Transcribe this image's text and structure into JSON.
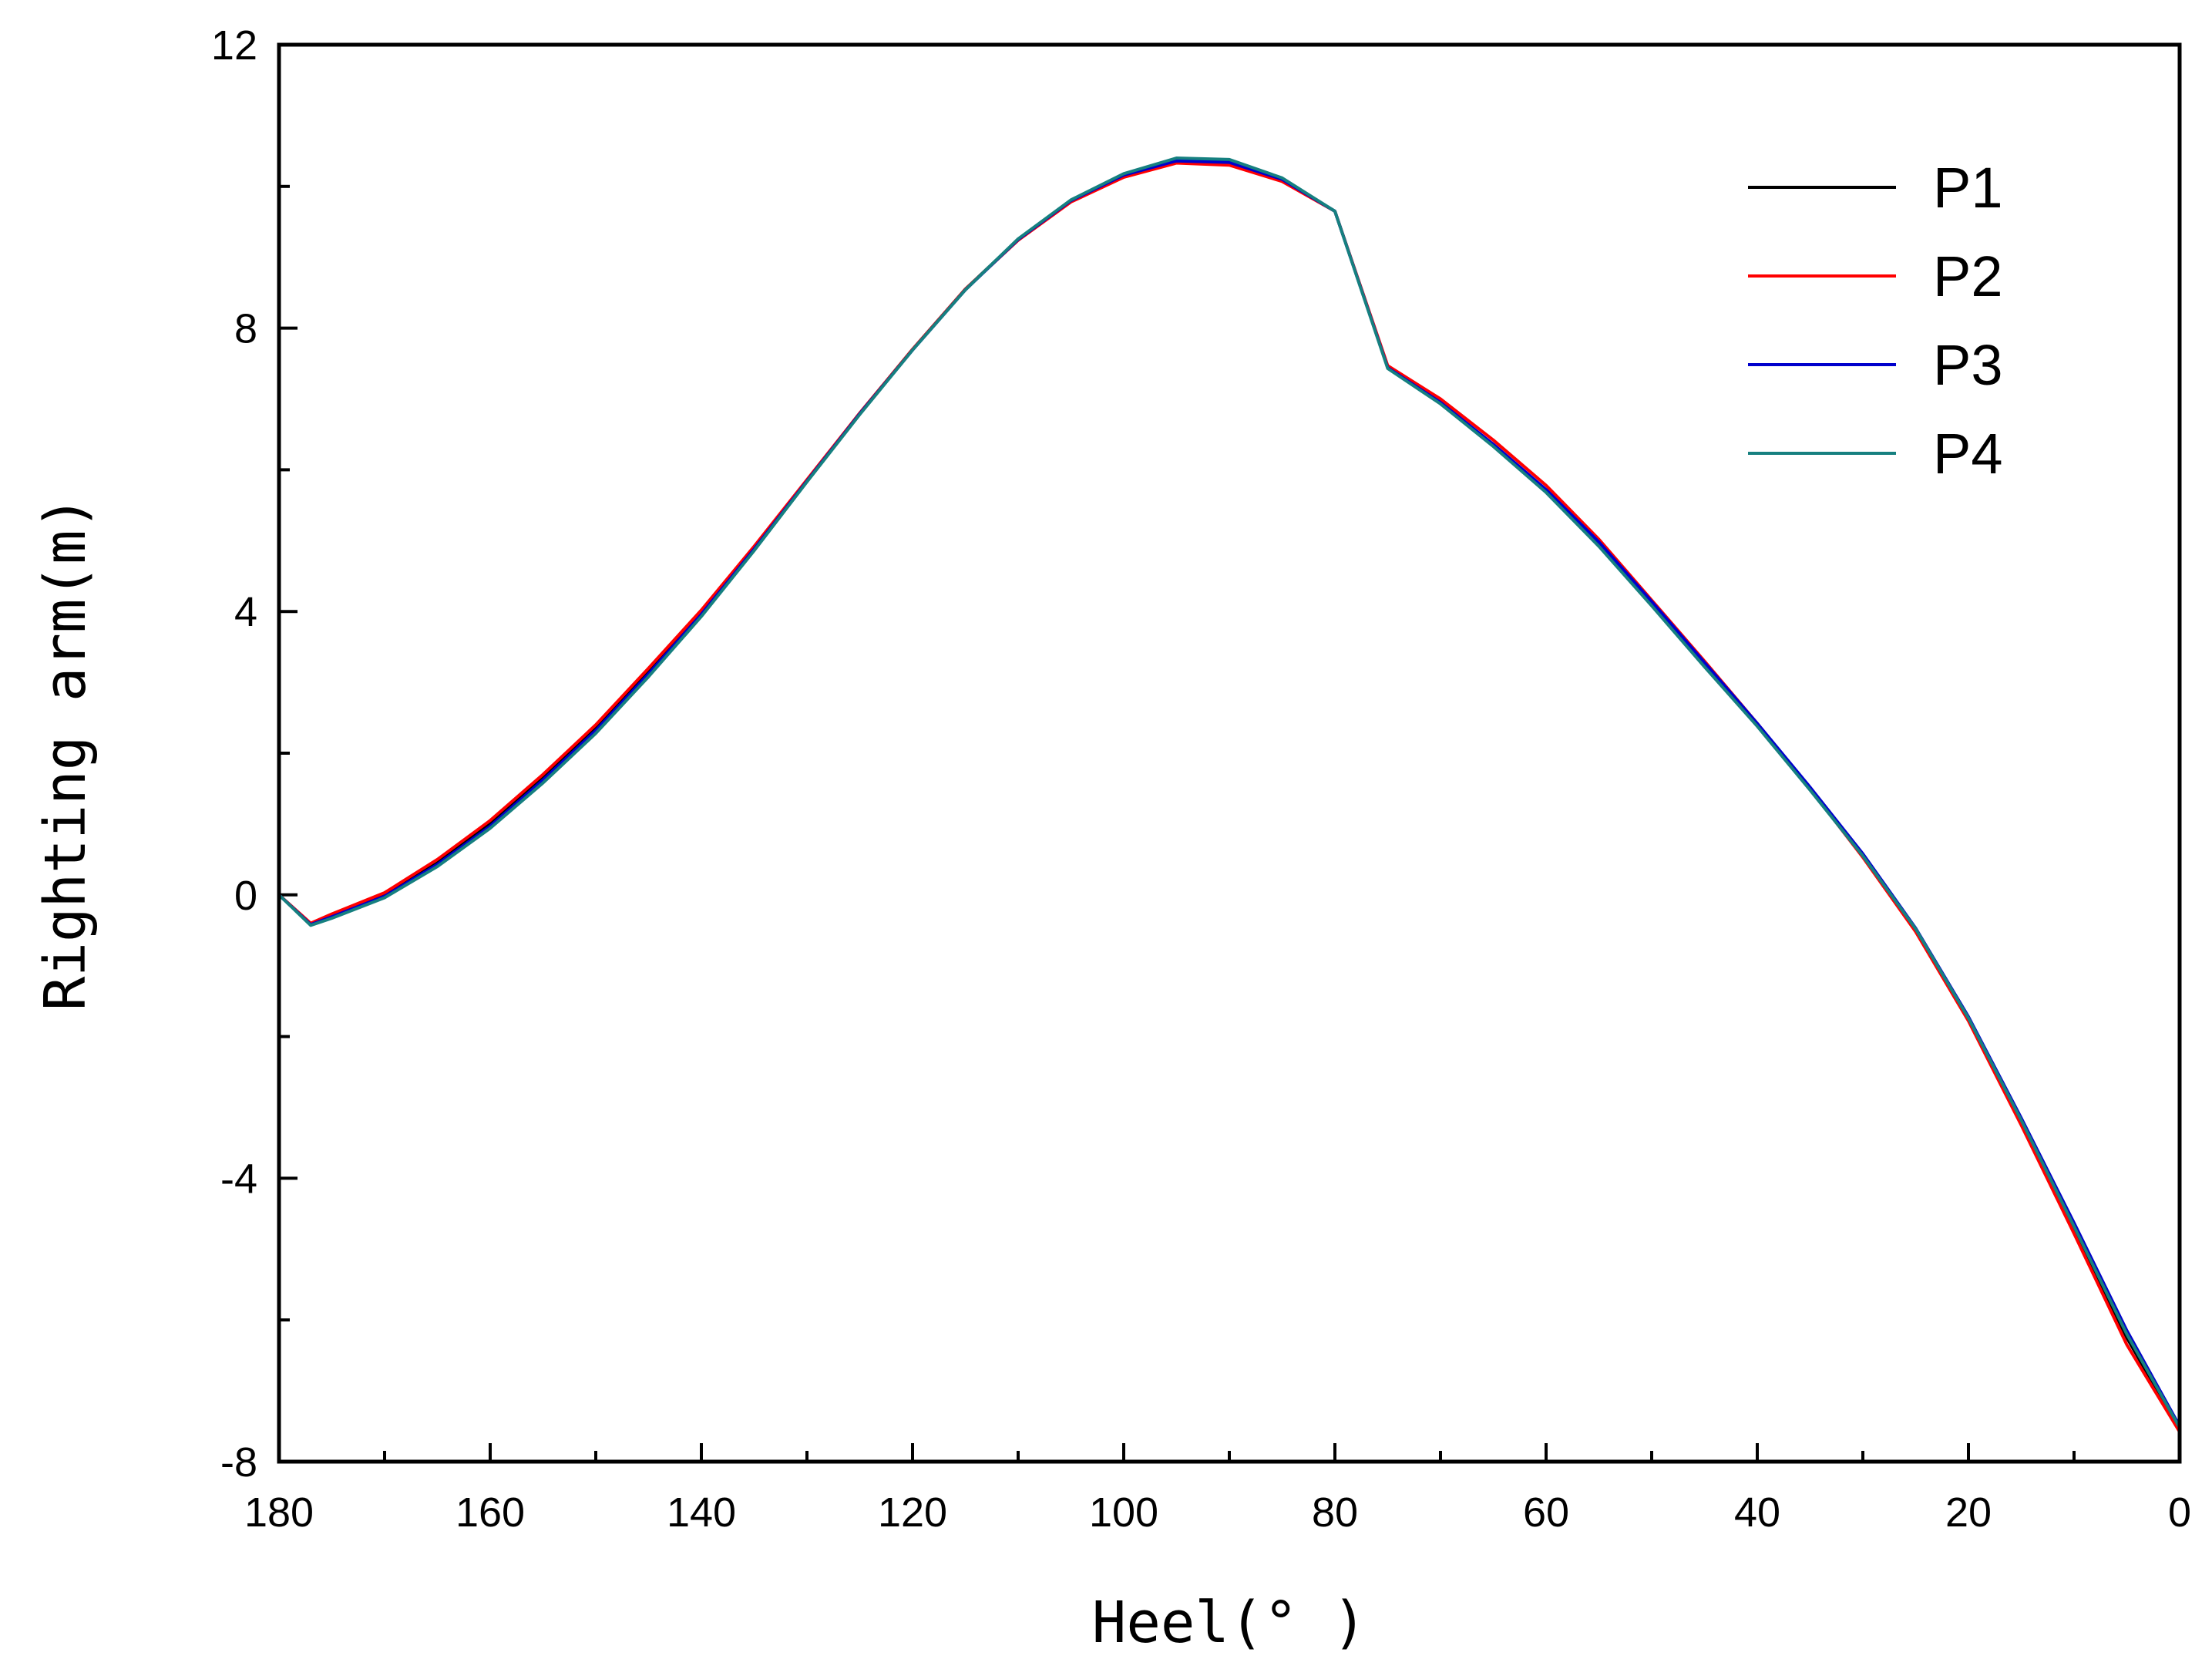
{
  "chart_data": {
    "type": "line",
    "title": "",
    "xlabel": "Heel(° )",
    "ylabel": "Righting arm(m)",
    "xlim": [
      180,
      0
    ],
    "ylim": [
      -8,
      12
    ],
    "x_ticks": [
      "180",
      "160",
      "140",
      "120",
      "100",
      "80",
      "60",
      "40",
      "20",
      "0"
    ],
    "y_ticks": [
      "12",
      "8",
      "4",
      "0",
      "-4",
      "-8"
    ],
    "legend_position": "top-right",
    "series": [
      {
        "name": "P1",
        "color": "#000000",
        "x": [
          180,
          177,
          175,
          170,
          165,
          160,
          155,
          150,
          145,
          140,
          135,
          130,
          125,
          120,
          115,
          110,
          105,
          100,
          95,
          90,
          85,
          80,
          75,
          70,
          65,
          60,
          55,
          50,
          45,
          40,
          35,
          30,
          25,
          20,
          15,
          10,
          5,
          0
        ],
        "y": [
          0,
          -0.42,
          -0.3,
          0,
          0.45,
          1.0,
          1.65,
          2.35,
          3.15,
          3.98,
          4.9,
          5.85,
          6.8,
          7.7,
          8.55,
          9.25,
          9.8,
          10.15,
          10.38,
          10.35,
          10.1,
          9.65,
          7.45,
          6.95,
          6.35,
          5.7,
          4.95,
          4.1,
          3.25,
          2.4,
          1.5,
          0.55,
          -0.5,
          -1.75,
          -3.2,
          -4.7,
          -6.25,
          -7.55
        ]
      },
      {
        "name": "P2",
        "color": "#ff0000",
        "x": [
          180,
          177,
          175,
          170,
          165,
          160,
          155,
          150,
          145,
          140,
          135,
          130,
          125,
          120,
          115,
          110,
          105,
          100,
          95,
          90,
          85,
          80,
          75,
          70,
          65,
          60,
          55,
          50,
          45,
          40,
          35,
          30,
          25,
          20,
          15,
          10,
          5,
          0
        ],
        "y": [
          0,
          -0.4,
          -0.27,
          0.03,
          0.5,
          1.05,
          1.7,
          2.4,
          3.2,
          4.02,
          4.92,
          5.86,
          6.8,
          7.7,
          8.55,
          9.24,
          9.78,
          10.13,
          10.33,
          10.3,
          10.07,
          9.65,
          7.47,
          7.0,
          6.42,
          5.78,
          5.02,
          4.16,
          3.3,
          2.42,
          1.5,
          0.53,
          -0.52,
          -1.78,
          -3.25,
          -4.78,
          -6.35,
          -7.58
        ]
      },
      {
        "name": "P3",
        "color": "#0000cc",
        "x": [
          180,
          177,
          175,
          170,
          165,
          160,
          155,
          150,
          145,
          140,
          135,
          130,
          125,
          120,
          115,
          110,
          105,
          100,
          95,
          90,
          85,
          80,
          75,
          70,
          65,
          60,
          55,
          50,
          45,
          40,
          35,
          30,
          25,
          20,
          15,
          10,
          5,
          0
        ],
        "y": [
          0,
          -0.42,
          -0.31,
          -0.02,
          0.43,
          0.97,
          1.62,
          2.32,
          3.12,
          3.96,
          4.88,
          5.84,
          6.79,
          7.69,
          8.54,
          9.25,
          9.8,
          10.16,
          10.36,
          10.34,
          10.1,
          9.65,
          7.44,
          6.95,
          6.36,
          5.72,
          4.98,
          4.14,
          3.28,
          2.42,
          1.52,
          0.58,
          -0.47,
          -1.72,
          -3.15,
          -4.63,
          -6.15,
          -7.5
        ]
      },
      {
        "name": "P4",
        "color": "#168080",
        "x": [
          180,
          177,
          175,
          170,
          165,
          160,
          155,
          150,
          145,
          140,
          135,
          130,
          125,
          120,
          115,
          110,
          105,
          100,
          95,
          90,
          85,
          80,
          75,
          70,
          65,
          60,
          55,
          50,
          45,
          40,
          35,
          30,
          25,
          20,
          15,
          10,
          5,
          0
        ],
        "y": [
          0,
          -0.43,
          -0.33,
          -0.04,
          0.4,
          0.94,
          1.58,
          2.28,
          3.08,
          3.93,
          4.86,
          5.83,
          6.78,
          7.69,
          8.54,
          9.26,
          9.81,
          10.18,
          10.4,
          10.38,
          10.12,
          9.65,
          7.43,
          6.93,
          6.33,
          5.68,
          4.92,
          4.08,
          3.22,
          2.38,
          1.48,
          0.55,
          -0.48,
          -1.74,
          -3.18,
          -4.68,
          -6.2,
          -7.52
        ]
      }
    ]
  }
}
